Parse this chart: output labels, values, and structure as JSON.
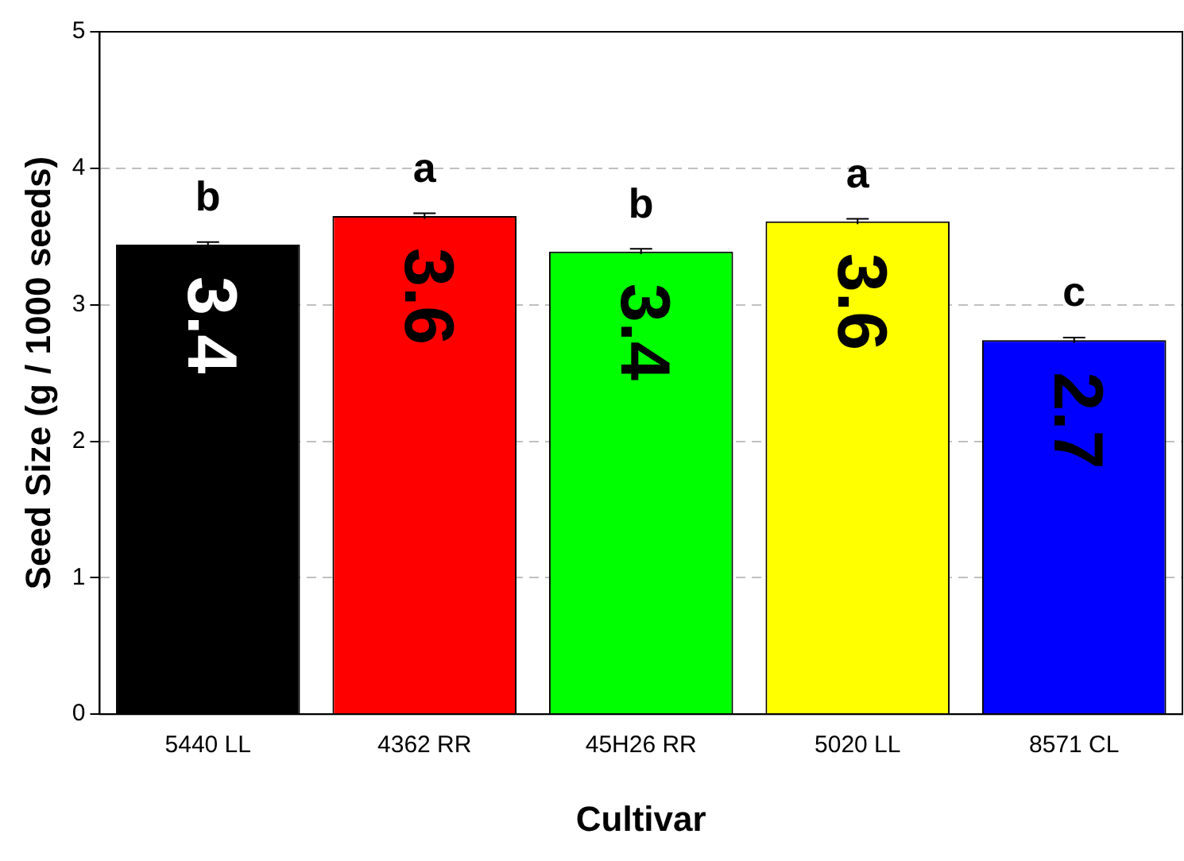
{
  "chart_data": {
    "type": "bar",
    "xlabel": "Cultivar",
    "ylabel": "Seed Size (g / 1000 seeds)",
    "categories": [
      "5440 LL",
      "4362 RR",
      "45H26 RR",
      "5020 LL",
      "8571 CL"
    ],
    "values": [
      3.44,
      3.65,
      3.39,
      3.61,
      2.74
    ],
    "colors": [
      "#000000",
      "#ff0000",
      "#00ff00",
      "#ffff00",
      "#0000ff"
    ],
    "errors": [
      0.02,
      0.02,
      0.02,
      0.02,
      0.02
    ],
    "value_labels": [
      "3.4",
      "3.6",
      "3.4",
      "3.6",
      "2.7"
    ],
    "annotations": [
      {
        "text": "b",
        "x": "5440 LL",
        "y": 3.46
      },
      {
        "text": "a",
        "x": "4362 RR",
        "y": 3.67
      },
      {
        "text": "b",
        "x": "45H26 RR",
        "y": 3.41
      },
      {
        "text": "a",
        "x": "5020 LL",
        "y": 3.63
      },
      {
        "text": "c",
        "x": "8571 CL",
        "y": 2.76
      }
    ],
    "ylim": [
      0,
      5
    ],
    "yticks": [
      0,
      1,
      2,
      3,
      4,
      5
    ],
    "grid": "y",
    "legend": false
  }
}
